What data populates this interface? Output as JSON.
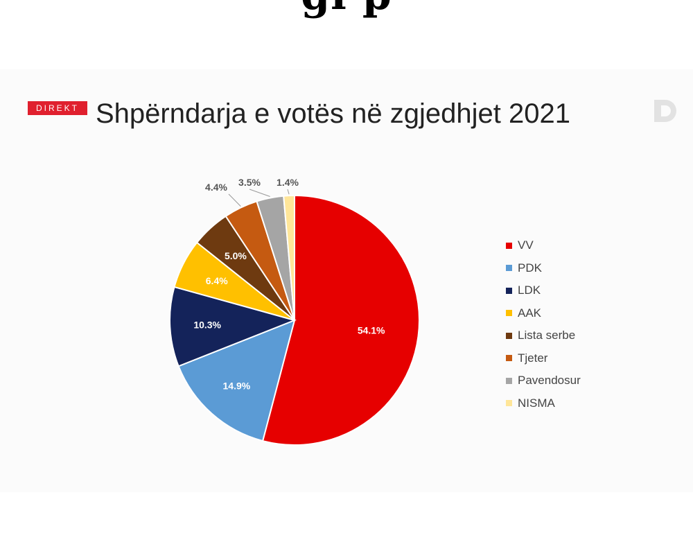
{
  "page": {
    "headline_fragment": "gl                   p"
  },
  "badge": {
    "label": "DIREKT"
  },
  "chart_data": {
    "type": "pie",
    "title": "Shpërndarja e votës në zgjedhjet 2021",
    "categories": [
      "VV",
      "PDK",
      "LDK",
      "AAK",
      "Lista serbe",
      "Tjeter",
      "Pavendosur",
      "NISMA"
    ],
    "values": [
      54.1,
      14.9,
      10.3,
      6.4,
      5.0,
      4.4,
      3.5,
      1.4
    ],
    "labels": [
      "54.1%",
      "14.9%",
      "10.3%",
      "6.4%",
      "5.0%",
      "4.4%",
      "3.5%",
      "1.4%"
    ],
    "colors": [
      "#e60000",
      "#5b9bd5",
      "#14235a",
      "#ffc000",
      "#6e3a10",
      "#c55a11",
      "#a5a5a5",
      "#ffe699"
    ],
    "legend_position": "right",
    "grid": false
  }
}
